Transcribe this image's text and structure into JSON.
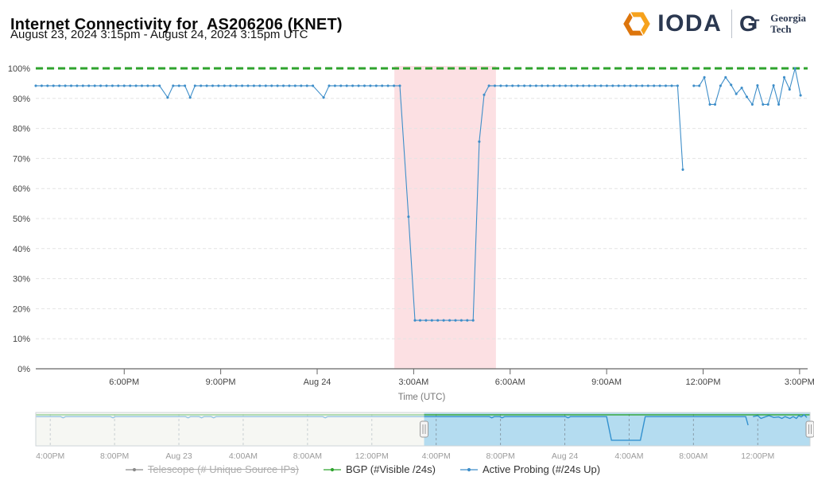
{
  "header": {
    "title": "Internet Connectivity for  AS206206 (KNET)",
    "subtitle": "August 23, 2024 3:15pm - August 24, 2024 3:15pm UTC",
    "brand": {
      "ioda": "IODA",
      "gt_mark_g": "G",
      "gt_mark_t": "T",
      "georgia": "Georgia",
      "tech": "Tech"
    }
  },
  "legend": {
    "items": [
      {
        "label": "Telescope (# Unique Source IPs)",
        "color": "#8a8a8a",
        "disabled": true
      },
      {
        "label": "BGP (#Visible /24s)",
        "color": "#2fa32e",
        "disabled": false
      },
      {
        "label": "Active Probing (#/24s Up)",
        "color": "#3e8ec9",
        "disabled": false
      }
    ]
  },
  "chart_data": {
    "type": "line",
    "title": "Internet Connectivity for AS206206 (KNET)",
    "xlabel": "Time (UTC)",
    "ylabel": "",
    "t_units": "hours since Aug 23 2024 00:00 UTC (read from axis labels)",
    "x_domain": [
      15.25,
      39.25
    ],
    "ylim": [
      0,
      100
    ],
    "grid": true,
    "legend_position": "bottom",
    "x_ticks": [
      {
        "label": "6:00PM",
        "t": 18
      },
      {
        "label": "9:00PM",
        "t": 21
      },
      {
        "label": "Aug 24",
        "t": 24
      },
      {
        "label": "3:00AM",
        "t": 27
      },
      {
        "label": "6:00AM",
        "t": 30
      },
      {
        "label": "9:00AM",
        "t": 33
      },
      {
        "label": "12:00PM",
        "t": 36
      },
      {
        "label": "3:00PM",
        "t": 39
      }
    ],
    "y_ticks": [
      {
        "v": 0,
        "label": "0%"
      },
      {
        "v": 10,
        "label": "10%"
      },
      {
        "v": 20,
        "label": "20%"
      },
      {
        "v": 30,
        "label": "30%"
      },
      {
        "v": 40,
        "label": "40%"
      },
      {
        "v": 50,
        "label": "50%"
      },
      {
        "v": 60,
        "label": "60%"
      },
      {
        "v": 70,
        "label": "70%"
      },
      {
        "v": 80,
        "label": "80%"
      },
      {
        "v": 90,
        "label": "90%"
      },
      {
        "v": 100,
        "label": "100%"
      }
    ],
    "outage_band": {
      "t0": 26.4,
      "t1": 29.56,
      "color": "rgba(237,85,101,0.18)"
    },
    "series": [
      {
        "name": "BGP (#Visible /24s)",
        "color": "#2fa32e",
        "dash": "9,5",
        "width": 3,
        "markers": false,
        "segments": [
          {
            "t0": 15.25,
            "t1": 39.25,
            "v": 100
          }
        ]
      },
      {
        "name": "Active Probing (#/24s Up)",
        "color": "#3e8ec9",
        "width": 1.1,
        "markers": true,
        "segments": [
          {
            "t0": 15.25,
            "t1": 19.17,
            "v": 94.2
          },
          {
            "pts": [
              [
                19.35,
                90.3
              ]
            ]
          },
          {
            "t0": 19.52,
            "t1": 19.9,
            "v": 94.2
          },
          {
            "pts": [
              [
                20.05,
                90.3
              ]
            ]
          },
          {
            "t0": 20.2,
            "t1": 24.03,
            "v": 94.2
          },
          {
            "pts": [
              [
                24.2,
                90.3
              ]
            ]
          },
          {
            "t0": 24.37,
            "t1": 26.69,
            "v": 94.2
          },
          {
            "pts": [
              [
                26.84,
                50.6
              ],
              [
                27.04,
                16.1
              ]
            ]
          },
          {
            "t0": 27.2,
            "t1": 28.87,
            "v": 16.1
          },
          {
            "pts": [
              [
                29.04,
                75.6
              ],
              [
                29.19,
                91.2
              ]
            ]
          },
          {
            "t0": 29.34,
            "t1": 35.22,
            "v": 94.2
          },
          {
            "pts": [
              [
                35.37,
                66.3
              ]
            ]
          },
          {
            "gap": true
          },
          {
            "pts": [
              [
                35.71,
                94.2
              ],
              [
                35.88,
                94.2
              ],
              [
                36.04,
                97.0
              ],
              [
                36.21,
                88.0
              ],
              [
                36.37,
                88.0
              ],
              [
                36.54,
                94.2
              ],
              [
                36.7,
                97.0
              ],
              [
                36.87,
                94.5
              ],
              [
                37.03,
                91.5
              ],
              [
                37.2,
                93.5
              ],
              [
                37.36,
                90.5
              ],
              [
                37.53,
                88.0
              ],
              [
                37.69,
                94.3
              ],
              [
                37.86,
                88.0
              ],
              [
                38.02,
                88.0
              ],
              [
                38.19,
                94.3
              ],
              [
                38.35,
                88.0
              ],
              [
                38.52,
                97.0
              ],
              [
                38.69,
                93.0
              ],
              [
                38.86,
                100.0
              ],
              [
                39.03,
                91.0
              ]
            ]
          }
        ]
      },
      {
        "name": "Telescope (# Unique Source IPs)",
        "color": "#8a8a8a",
        "hidden": true,
        "segments": []
      }
    ],
    "navigator": {
      "x_domain": [
        -8.9,
        39.25
      ],
      "selection": [
        15.25,
        39.25
      ],
      "x_ticks": [
        {
          "label": "4:00PM",
          "t": -8
        },
        {
          "label": "8:00PM",
          "t": -4
        },
        {
          "label": "Aug 23",
          "t": 0
        },
        {
          "label": "4:00AM",
          "t": 4
        },
        {
          "label": "8:00AM",
          "t": 8
        },
        {
          "label": "12:00PM",
          "t": 12
        },
        {
          "label": "4:00PM",
          "t": 16
        },
        {
          "label": "8:00PM",
          "t": 20
        },
        {
          "label": "Aug 24",
          "t": 24
        },
        {
          "label": "4:00AM",
          "t": 28
        },
        {
          "label": "8:00AM",
          "t": 32
        },
        {
          "label": "12:00PM",
          "t": 36
        }
      ],
      "series": [
        {
          "name": "BGP",
          "color": "#2fa32e",
          "width": 1.4,
          "segments": [
            {
              "t0": -8.9,
              "t1": 39.25,
              "v": 100
            }
          ]
        },
        {
          "name": "Active Probing",
          "color": "#3391cf",
          "width": 1.4,
          "segments": [
            {
              "t0": -8.9,
              "t1": -7.35,
              "v": 94
            },
            {
              "pts": [
                [
                  -7.2,
                  90
                ]
              ]
            },
            {
              "t0": -7.05,
              "t1": -4.25,
              "v": 94
            },
            {
              "pts": [
                [
                  -4.1,
                  90
                ]
              ]
            },
            {
              "t0": -3.95,
              "t1": 0.42,
              "v": 94
            },
            {
              "pts": [
                [
                  0.57,
                  90
                ]
              ]
            },
            {
              "t0": 0.72,
              "t1": 1.26,
              "v": 94
            },
            {
              "pts": [
                [
                  1.41,
                  90
                ]
              ]
            },
            {
              "t0": 1.56,
              "t1": 2.01,
              "v": 94
            },
            {
              "pts": [
                [
                  2.16,
                  90
                ]
              ]
            },
            {
              "t0": 2.31,
              "t1": 8.95,
              "v": 94
            },
            {
              "pts": [
                [
                  9.1,
                  90
                ]
              ]
            },
            {
              "t0": 9.25,
              "t1": 19.31,
              "v": 94
            },
            {
              "pts": [
                [
                  19.46,
                  90
                ]
              ]
            },
            {
              "t0": 19.61,
              "t1": 19.95,
              "v": 94
            },
            {
              "pts": [
                [
                  20.1,
                  90
                ]
              ]
            },
            {
              "t0": 20.25,
              "t1": 24.05,
              "v": 94
            },
            {
              "pts": [
                [
                  24.2,
                  90
                ]
              ]
            },
            {
              "t0": 24.35,
              "t1": 26.6,
              "v": 94
            },
            {
              "pts": [
                [
                  26.9,
                  16
                ]
              ]
            },
            {
              "t0": 27.0,
              "t1": 28.7,
              "v": 16
            },
            {
              "pts": [
                [
                  29.0,
                  94
                ]
              ]
            },
            {
              "t0": 29.05,
              "t1": 35.25,
              "v": 94
            },
            {
              "pts": [
                [
                  35.4,
                  66
                ]
              ]
            },
            {
              "gap": true
            },
            {
              "pts": [
                [
                  35.7,
                  94
                ],
                [
                  36.0,
                  97
                ],
                [
                  36.2,
                  88
                ],
                [
                  36.5,
                  94
                ],
                [
                  36.7,
                  97
                ],
                [
                  37.0,
                  91
                ],
                [
                  37.3,
                  93
                ],
                [
                  37.5,
                  88
                ],
                [
                  37.7,
                  94
                ],
                [
                  38.0,
                  88
                ],
                [
                  38.2,
                  94
                ],
                [
                  38.4,
                  88
                ],
                [
                  38.55,
                  97
                ],
                [
                  38.7,
                  93
                ],
                [
                  38.88,
                  100
                ],
                [
                  39.05,
                  91
                ]
              ]
            }
          ]
        }
      ]
    }
  }
}
